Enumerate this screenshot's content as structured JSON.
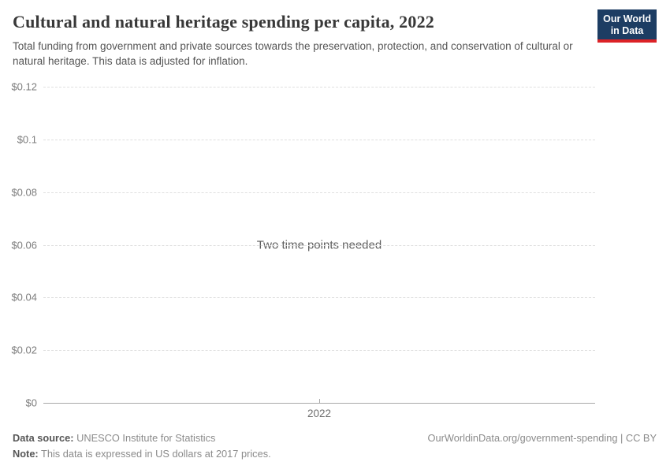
{
  "header": {
    "title": "Cultural and natural heritage spending per capita, 2022",
    "subtitle": "Total funding from government and private sources towards the preservation, protection, and conservation of cultural or natural heritage. This data is adjusted for inflation.",
    "logo_line1": "Our World",
    "logo_line2": "in Data"
  },
  "chart_data": {
    "type": "line",
    "title": "Cultural and natural heritage spending per capita, 2022",
    "series": [],
    "empty_message": "Two time points needed",
    "x": [
      2022
    ],
    "xtick_labels": [
      "2022"
    ],
    "xlabel": "",
    "ylabel": "",
    "ylim": [
      0,
      0.12
    ],
    "yticks": [
      0,
      0.02,
      0.04,
      0.06,
      0.08,
      0.1,
      0.12
    ],
    "ytick_labels": [
      "$0",
      "$0.02",
      "$0.04",
      "$0.06",
      "$0.08",
      "$0.1",
      "$0.12"
    ],
    "grid": "horizontal-dashed",
    "legend": "none"
  },
  "footer": {
    "data_source_label": "Data source:",
    "data_source_value": " UNESCO Institute for Statistics",
    "note_label": "Note:",
    "note_value": " This data is expressed in US dollars at 2017 prices.",
    "attribution": "OurWorldinData.org/government-spending | CC BY"
  },
  "colors": {
    "logo_background": "#1d3d63",
    "logo_stripe": "#dc2227",
    "title_text": "#383838",
    "subtitle_text": "#555555",
    "axis_label": "#7d7d7d",
    "gridline": "#dfdfdf",
    "axis_line": "#a8a8a8",
    "empty_message_text": "#5f5f5f",
    "footer_text": "#8b8b8b"
  }
}
